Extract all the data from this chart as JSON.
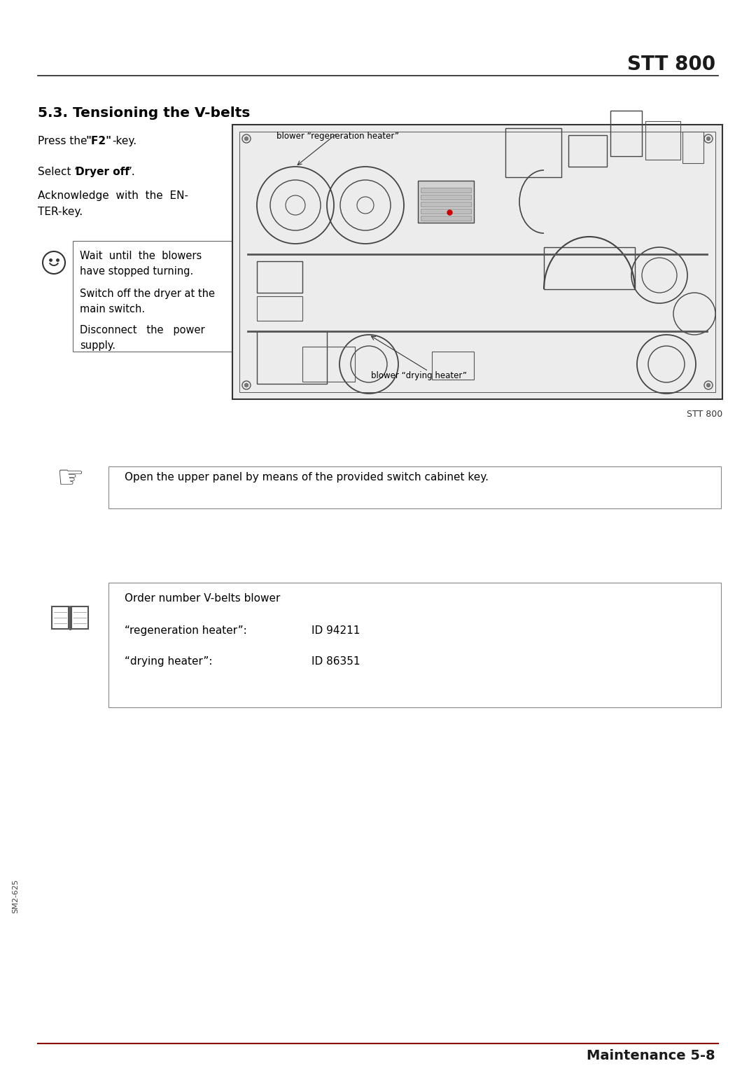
{
  "bg_color": "#ffffff",
  "header_title": "STT 800",
  "footer_text": "Maintenance 5-8",
  "footer_line_color": "#8B0000",
  "section_title": "5.3. Tensioning the V-belts",
  "para1_pre": "Press the ",
  "para1_bold": "\"F2\"",
  "para1_post": "-key.",
  "para2_pre": "Select “",
  "para2_bold": "Dryer off",
  "para2_post": "”.",
  "para3_line1": "Acknowledge  with  the  EN-",
  "para3_line2": "TER-key.",
  "warn_line1": "Wait  until  the  blowers",
  "warn_line2": "have stopped turning.",
  "warn_line3": "Switch off the dryer at the",
  "warn_line4": "main switch.",
  "warn_line5": "Disconnect   the   power",
  "warn_line6": "supply.",
  "img_label_top": "blower “regeneration heater”",
  "img_label_bottom": "blower “drying heater”",
  "img_footer": "STT 800",
  "note_text": "Open the upper panel by means of the provided switch cabinet key.",
  "order_title": "Order number V-belts blower",
  "order_r1_label": "“regeneration heater”:",
  "order_r1_val": "ID 94211",
  "order_r2_label": "“drying heater”:",
  "order_r2_val": "ID 86351",
  "side_text": "SM2-625"
}
